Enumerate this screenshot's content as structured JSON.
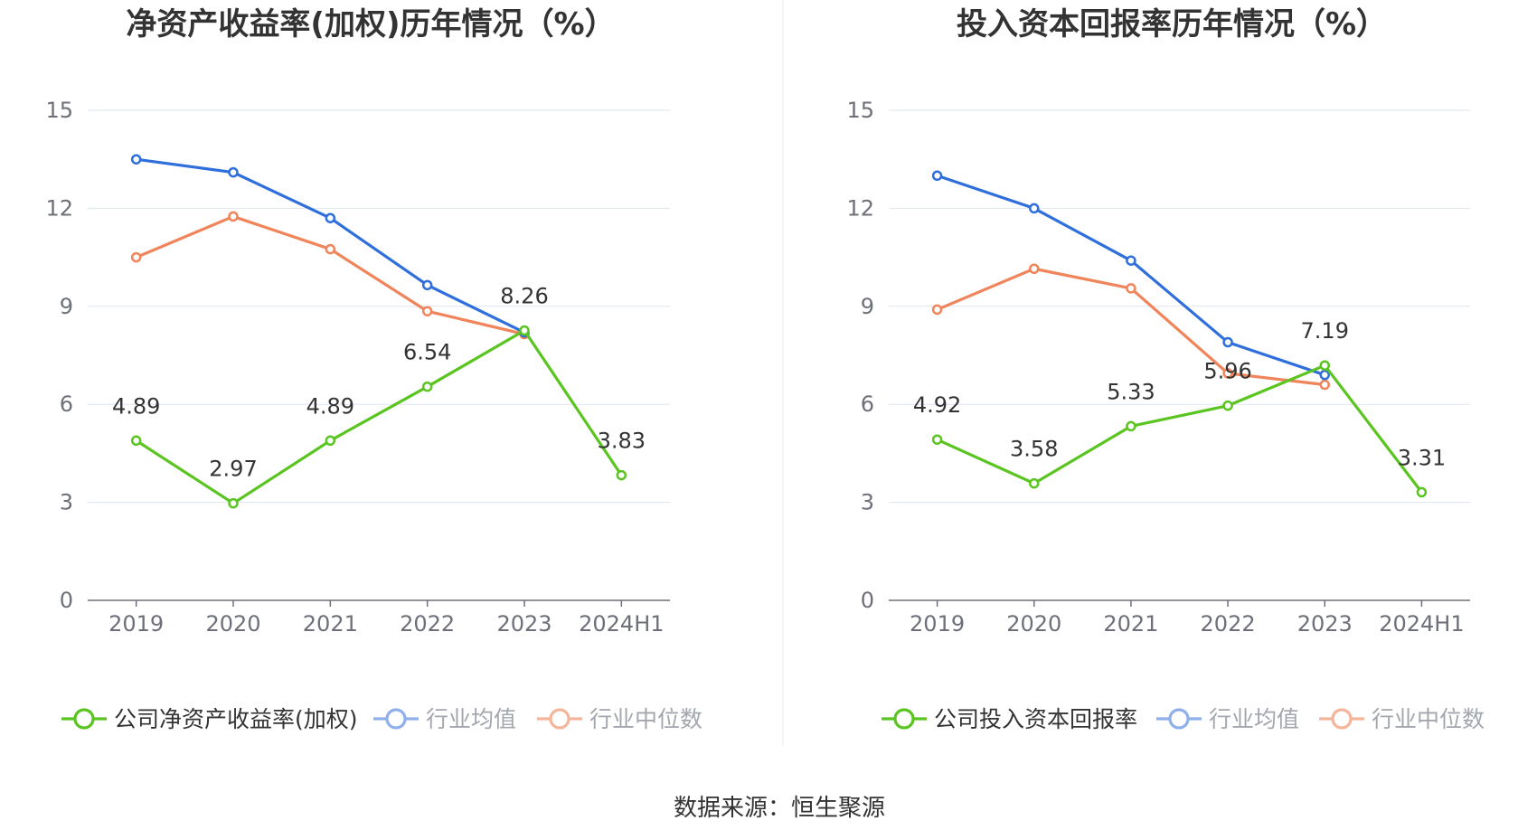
{
  "colors": {
    "company": "#5ac520",
    "avg": "#2f6fdc",
    "median": "#f0845a",
    "avg_legend": "#8fb0ea",
    "median_legend": "#f5b59b",
    "grid": "#dde3ee",
    "axis": "#6e7079"
  },
  "source_text": "数据来源：恒生聚源",
  "chart_data": [
    {
      "type": "line",
      "title": "净资产收益率(加权)历年情况（%）",
      "categories": [
        "2019",
        "2020",
        "2021",
        "2022",
        "2023",
        "2024H1"
      ],
      "yticks": [
        "0",
        "3",
        "6",
        "9",
        "12",
        "15"
      ],
      "ylim": [
        0,
        15
      ],
      "grid": true,
      "legend_position": "bottom",
      "series": [
        {
          "key": "company",
          "name": "公司净资产收益率(加权)",
          "values": [
            4.89,
            2.97,
            4.89,
            6.54,
            8.26,
            3.83
          ],
          "labels": [
            "4.89",
            "2.97",
            "4.89",
            "6.54",
            "8.26",
            "3.83"
          ]
        },
        {
          "key": "avg",
          "name": "行业均值",
          "values": [
            13.5,
            13.1,
            11.7,
            9.65,
            8.2,
            null
          ]
        },
        {
          "key": "median",
          "name": "行业中位数",
          "values": [
            10.5,
            11.75,
            10.75,
            8.85,
            8.15,
            null
          ]
        }
      ]
    },
    {
      "type": "line",
      "title": "投入资本回报率历年情况（%）",
      "categories": [
        "2019",
        "2020",
        "2021",
        "2022",
        "2023",
        "2024H1"
      ],
      "yticks": [
        "0",
        "3",
        "6",
        "9",
        "12",
        "15"
      ],
      "ylim": [
        0,
        15
      ],
      "grid": true,
      "legend_position": "bottom",
      "series": [
        {
          "key": "company",
          "name": "公司投入资本回报率",
          "values": [
            4.92,
            3.58,
            5.33,
            5.96,
            7.19,
            3.31
          ],
          "labels": [
            "4.92",
            "3.58",
            "5.33",
            "5.96",
            "7.19",
            "3.31"
          ]
        },
        {
          "key": "avg",
          "name": "行业均值",
          "values": [
            13.0,
            12.0,
            10.4,
            7.9,
            6.9,
            null
          ]
        },
        {
          "key": "median",
          "name": "行业中位数",
          "values": [
            8.9,
            10.15,
            9.55,
            6.95,
            6.6,
            null
          ]
        }
      ]
    }
  ]
}
